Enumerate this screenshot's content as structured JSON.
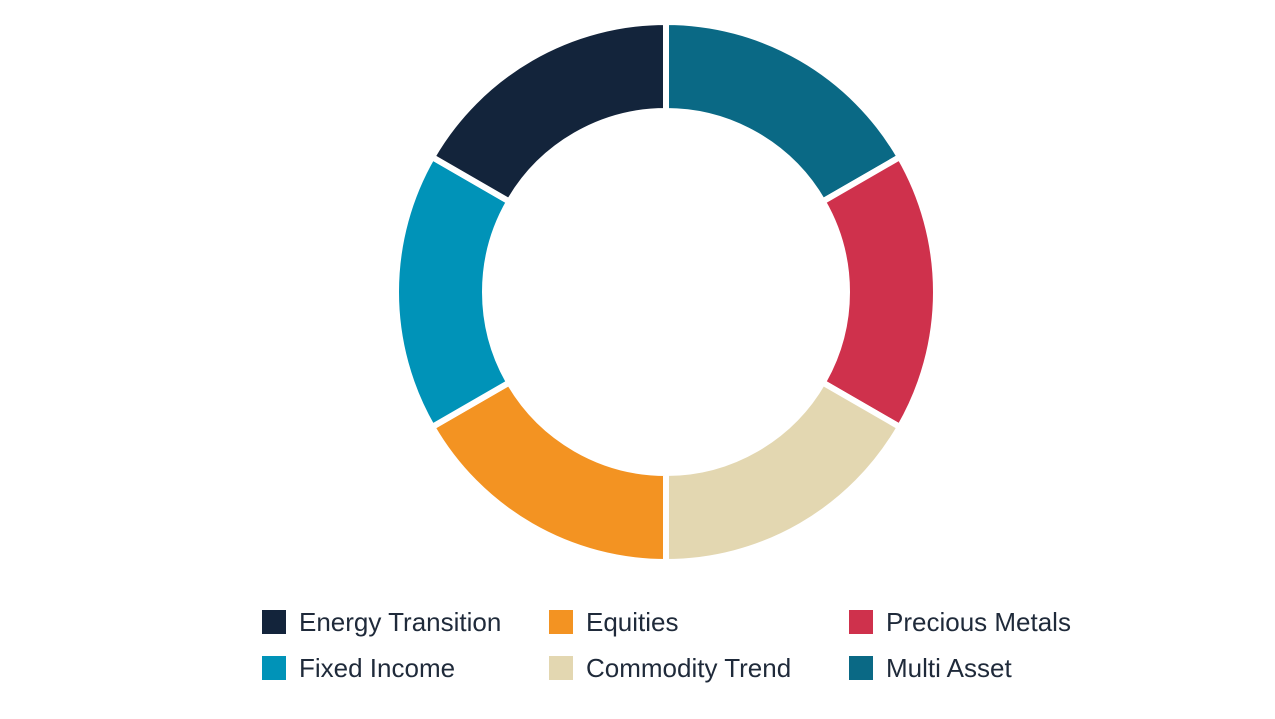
{
  "chart_data": {
    "type": "pie",
    "donut": true,
    "title": "",
    "legend_position": "bottom",
    "slices": [
      {
        "label": "Multi Asset",
        "value": 1,
        "color": "#0a6985"
      },
      {
        "label": "Precious Metals",
        "value": 1,
        "color": "#cf314c"
      },
      {
        "label": "Commodity Trend",
        "value": 1,
        "color": "#e3d7b1"
      },
      {
        "label": "Equities",
        "value": 1,
        "color": "#f39322"
      },
      {
        "label": "Fixed Income",
        "value": 1,
        "color": "#0093b8"
      },
      {
        "label": "Energy Transition",
        "value": 1,
        "color": "#13243b"
      }
    ],
    "legend": [
      {
        "label": "Energy Transition",
        "color": "#13243b"
      },
      {
        "label": "Equities",
        "color": "#f39322"
      },
      {
        "label": "Precious Metals",
        "color": "#cf314c"
      },
      {
        "label": "Fixed Income",
        "color": "#0093b8"
      },
      {
        "label": "Commodity Trend",
        "color": "#e3d7b1"
      },
      {
        "label": "Multi Asset",
        "color": "#0a6985"
      }
    ]
  }
}
